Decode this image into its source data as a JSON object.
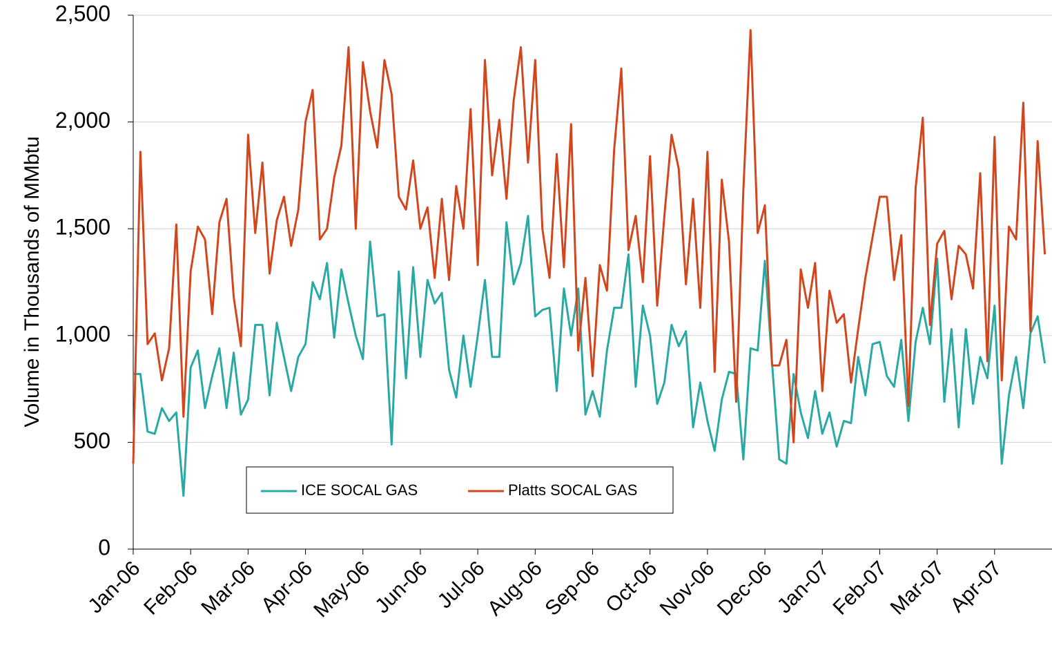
{
  "chart_data": {
    "type": "line",
    "y_label": "Volume in Thousands of MMbtu",
    "categories": [
      "Jan-06",
      null,
      null,
      null,
      null,
      null,
      null,
      null,
      "Feb-06",
      null,
      null,
      null,
      null,
      null,
      null,
      null,
      "Mar-06",
      null,
      null,
      null,
      null,
      null,
      null,
      null,
      "Apr-06",
      null,
      null,
      null,
      null,
      null,
      null,
      null,
      "May-06",
      null,
      null,
      null,
      null,
      null,
      null,
      null,
      "Jun-06",
      null,
      null,
      null,
      null,
      null,
      null,
      null,
      "Jul-06",
      null,
      null,
      null,
      null,
      null,
      null,
      null,
      "Aug-06",
      null,
      null,
      null,
      null,
      null,
      null,
      null,
      "Sep-06",
      null,
      null,
      null,
      null,
      null,
      null,
      null,
      "Oct-06",
      null,
      null,
      null,
      null,
      null,
      null,
      null,
      "Nov-06",
      null,
      null,
      null,
      null,
      null,
      null,
      null,
      "Dec-06",
      null,
      null,
      null,
      null,
      null,
      null,
      null,
      "Jan-07",
      null,
      null,
      null,
      null,
      null,
      null,
      null,
      "Feb-07",
      null,
      null,
      null,
      null,
      null,
      null,
      null,
      "Mar-07",
      null,
      null,
      null,
      null,
      null,
      null,
      null,
      "Apr-07",
      null,
      null,
      null,
      null,
      null,
      null,
      null
    ],
    "series": [
      {
        "name": "ICE SOCAL GAS",
        "color": "#2aa9a4",
        "values": [
          820,
          820,
          550,
          540,
          660,
          600,
          640,
          250,
          850,
          930,
          660,
          810,
          940,
          660,
          920,
          630,
          700,
          1050,
          1050,
          720,
          1060,
          900,
          740,
          900,
          960,
          1250,
          1170,
          1340,
          990,
          1310,
          1150,
          1000,
          890,
          1440,
          1090,
          1100,
          490,
          1300,
          800,
          1320,
          900,
          1260,
          1150,
          1200,
          840,
          710,
          1000,
          760,
          1000,
          1260,
          900,
          900,
          1530,
          1240,
          1340,
          1560,
          1090,
          1120,
          1130,
          740,
          1220,
          1000,
          1220,
          630,
          740,
          620,
          930,
          1130,
          1130,
          1380,
          760,
          1140,
          1000,
          680,
          780,
          1050,
          950,
          1020,
          570,
          780,
          600,
          460,
          700,
          830,
          820,
          420,
          940,
          930,
          1350,
          870,
          420,
          400,
          820,
          640,
          520,
          740,
          540,
          640,
          480,
          600,
          590,
          900,
          720,
          960,
          970,
          810,
          760,
          980,
          600,
          970,
          1130,
          960,
          1360,
          690,
          1030,
          570,
          1030,
          680,
          900,
          800,
          1140,
          400,
          720,
          900,
          660,
          1010,
          1090,
          870
        ]
      },
      {
        "name": "Platts SOCAL GAS",
        "color": "#d2461e",
        "values": [
          400,
          1860,
          960,
          1010,
          790,
          940,
          1520,
          620,
          1300,
          1510,
          1450,
          1100,
          1530,
          1640,
          1180,
          950,
          1940,
          1480,
          1810,
          1290,
          1540,
          1650,
          1420,
          1590,
          2000,
          2150,
          1450,
          1500,
          1740,
          1890,
          2350,
          1500,
          2280,
          2050,
          1880,
          2290,
          2130,
          1650,
          1590,
          1820,
          1500,
          1600,
          1270,
          1640,
          1260,
          1700,
          1500,
          2060,
          1330,
          2290,
          1750,
          2010,
          1640,
          2100,
          2350,
          1810,
          2290,
          1500,
          1270,
          1850,
          1320,
          1990,
          930,
          1270,
          810,
          1330,
          1210,
          1870,
          2250,
          1400,
          1560,
          1250,
          1840,
          1140,
          1560,
          1940,
          1780,
          1240,
          1640,
          1130,
          1860,
          830,
          1730,
          1440,
          690,
          1680,
          2430,
          1480,
          1610,
          860,
          860,
          980,
          500,
          1310,
          1130,
          1340,
          740,
          1210,
          1060,
          1100,
          780,
          1030,
          1270,
          1460,
          1650,
          1650,
          1260,
          1470,
          670,
          1690,
          2020,
          1050,
          1430,
          1490,
          1170,
          1420,
          1380,
          1220,
          1760,
          880,
          1930,
          790,
          1510,
          1450,
          2090,
          1020,
          1910,
          1380
        ]
      }
    ],
    "ylim": [
      0,
      2500
    ],
    "yticks": [
      0,
      500,
      {
        "value": 1000,
        "label": "1,000"
      },
      {
        "value": 1500,
        "label": "1,500"
      },
      {
        "value": 2000,
        "label": "2,000"
      },
      {
        "value": 2500,
        "label": "2,500"
      }
    ],
    "grid": true
  }
}
